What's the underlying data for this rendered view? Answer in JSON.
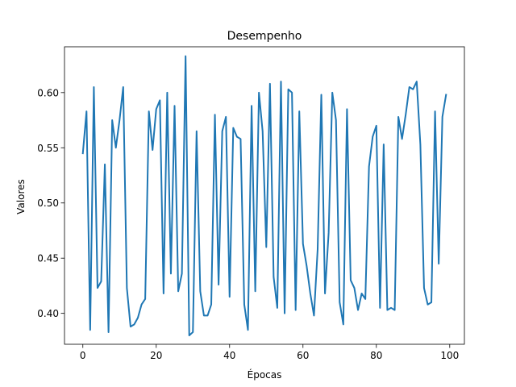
{
  "chart_data": {
    "type": "line",
    "title": "Desempenho",
    "xlabel": "Épocas",
    "ylabel": "Valores",
    "xlim": [
      -5,
      104
    ],
    "ylim": [
      0.372,
      0.6415
    ],
    "xticks": [
      0,
      20,
      40,
      60,
      80,
      100
    ],
    "yticks": [
      0.4,
      0.45,
      0.5,
      0.55,
      0.6
    ],
    "ytick_labels": [
      "0.40",
      "0.45",
      "0.50",
      "0.55",
      "0.60"
    ],
    "grid": false,
    "line_color": "#1f77b4",
    "series": [
      {
        "x": [
          0,
          1,
          2,
          3,
          4,
          5,
          6,
          7,
          8,
          9,
          10,
          11,
          12,
          13,
          14,
          15,
          16,
          17,
          18,
          19,
          20,
          21,
          22,
          23,
          24,
          25,
          26,
          27,
          28,
          29,
          30,
          31,
          32,
          33,
          34,
          35,
          36,
          37,
          38,
          39,
          40,
          41,
          42,
          43,
          44,
          45,
          46,
          47,
          48,
          49,
          50,
          51,
          52,
          53,
          54,
          55,
          56,
          57,
          58,
          59,
          60,
          61,
          62,
          63,
          64,
          65,
          66,
          67,
          68,
          69,
          70,
          71,
          72,
          73,
          74,
          75,
          76,
          77,
          78,
          79,
          80,
          81,
          82,
          83,
          84,
          85,
          86,
          87,
          88,
          89,
          90,
          91,
          92,
          93,
          94,
          95,
          96,
          97,
          98,
          99
        ],
        "values": [
          0.545,
          0.583,
          0.385,
          0.605,
          0.423,
          0.429,
          0.535,
          0.383,
          0.575,
          0.55,
          0.575,
          0.605,
          0.423,
          0.388,
          0.39,
          0.396,
          0.408,
          0.413,
          0.583,
          0.548,
          0.585,
          0.593,
          0.418,
          0.6,
          0.436,
          0.588,
          0.42,
          0.436,
          0.633,
          0.38,
          0.383,
          0.565,
          0.42,
          0.398,
          0.398,
          0.408,
          0.58,
          0.426,
          0.565,
          0.578,
          0.415,
          0.568,
          0.56,
          0.558,
          0.408,
          0.385,
          0.588,
          0.42,
          0.6,
          0.565,
          0.46,
          0.608,
          0.433,
          0.405,
          0.61,
          0.4,
          0.603,
          0.6,
          0.403,
          0.583,
          0.463,
          0.443,
          0.418,
          0.398,
          0.458,
          0.598,
          0.418,
          0.473,
          0.6,
          0.575,
          0.41,
          0.39,
          0.585,
          0.43,
          0.423,
          0.403,
          0.418,
          0.413,
          0.533,
          0.56,
          0.57,
          0.405,
          0.553,
          0.403,
          0.405,
          0.403,
          0.578,
          0.558,
          0.58,
          0.605,
          0.603,
          0.61,
          0.553,
          0.423,
          0.408,
          0.41,
          0.583,
          0.445,
          0.578,
          0.598
        ]
      }
    ]
  }
}
